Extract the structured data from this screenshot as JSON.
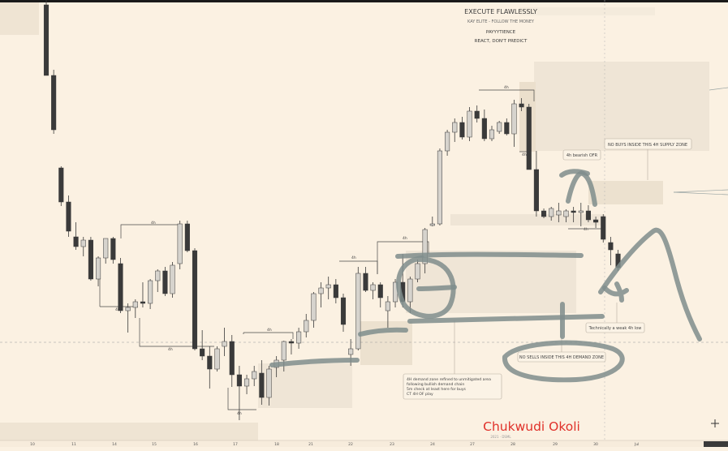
{
  "header": {
    "line1": "EXECUTE FLAWLESSLY",
    "line2": "KAY ELITE - FOLLOW THE MONEY",
    "line3": "PAYYYTIENCE",
    "line4": "REACT, DON'T PREDICT"
  },
  "annotations": {
    "supply_zone": "NO BUYS INSIDE THIS 4H SUPPLY ZONE",
    "bearish_ofr": "4h bearish OFR",
    "weak_low": "Technically a weak 4h low",
    "demand_zone": "NO SELLS INSIDE THIS 4H DEMAND ZONE",
    "demand_note": [
      "4H demand zone refined to unmitigated area",
      "following bullish demand chain",
      "5m check at least here for buys",
      "CT 4H OF play"
    ],
    "level_labels": [
      "4h",
      "4h",
      "4h",
      "4h",
      "4h",
      "4h",
      "4h",
      "4h",
      "4h",
      "4h"
    ]
  },
  "watermark": {
    "name": "Chukwudi Okoli",
    "sub": "2021 · DSML"
  },
  "colors": {
    "background": "#fbf1e2",
    "bear": "#3a3a3a",
    "bull": "#d6d3cd",
    "wick": "#3a3a3a",
    "zone": "#efe4d3",
    "pen": "#7f8d8c",
    "watermark": "#e0312a"
  },
  "chart_data": {
    "type": "candlestick",
    "title": "",
    "xlabel": "",
    "ylabel": "",
    "x_tick_labels": [
      "10",
      "11",
      "14",
      "15",
      "16",
      "17",
      "18",
      "21",
      "22",
      "23",
      "24",
      "27",
      "28",
      "29",
      "30"
    ],
    "x_right_label": "Jul",
    "ylim": [
      0,
      551
    ],
    "grid": false,
    "note": "Price axis unlabeled in screenshot; OHLC values are relative chart units (0 = bottom, higher = up).",
    "candles": [
      {
        "o": 545,
        "h": 551,
        "l": 458,
        "c": 458
      },
      {
        "o": 458,
        "h": 465,
        "l": 386,
        "c": 391
      },
      {
        "o": 344,
        "h": 346,
        "l": 297,
        "c": 302
      },
      {
        "o": 302,
        "h": 310,
        "l": 259,
        "c": 266
      },
      {
        "o": 259,
        "h": 277,
        "l": 243,
        "c": 247
      },
      {
        "o": 247,
        "h": 259,
        "l": 235,
        "c": 255
      },
      {
        "o": 255,
        "h": 259,
        "l": 205,
        "c": 207
      },
      {
        "o": 207,
        "h": 235,
        "l": 198,
        "c": 233
      },
      {
        "o": 233,
        "h": 257,
        "l": 226,
        "c": 257
      },
      {
        "o": 257,
        "h": 259,
        "l": 226,
        "c": 231
      },
      {
        "o": 226,
        "h": 233,
        "l": 165,
        "c": 168
      },
      {
        "o": 168,
        "h": 177,
        "l": 141,
        "c": 172
      },
      {
        "o": 172,
        "h": 182,
        "l": 159,
        "c": 179
      },
      {
        "o": 179,
        "h": 203,
        "l": 172,
        "c": 177
      },
      {
        "o": 177,
        "h": 207,
        "l": 170,
        "c": 205
      },
      {
        "o": 205,
        "h": 219,
        "l": 191,
        "c": 217
      },
      {
        "o": 217,
        "h": 222,
        "l": 186,
        "c": 189
      },
      {
        "o": 189,
        "h": 228,
        "l": 184,
        "c": 224
      },
      {
        "o": 226,
        "h": 279,
        "l": 219,
        "c": 275
      },
      {
        "o": 275,
        "h": 279,
        "l": 240,
        "c": 242
      },
      {
        "o": 242,
        "h": 245,
        "l": 119,
        "c": 121
      },
      {
        "o": 121,
        "h": 144,
        "l": 107,
        "c": 112
      },
      {
        "o": 112,
        "h": 124,
        "l": 72,
        "c": 96
      },
      {
        "o": 96,
        "h": 124,
        "l": 93,
        "c": 121
      },
      {
        "o": 124,
        "h": 147,
        "l": 112,
        "c": 130
      },
      {
        "o": 130,
        "h": 138,
        "l": 74,
        "c": 89
      },
      {
        "o": 89,
        "h": 100,
        "l": 33,
        "c": 75
      },
      {
        "o": 75,
        "h": 89,
        "l": 65,
        "c": 84
      },
      {
        "o": 84,
        "h": 100,
        "l": 75,
        "c": 93
      },
      {
        "o": 91,
        "h": 107,
        "l": 52,
        "c": 61
      },
      {
        "o": 61,
        "h": 100,
        "l": 51,
        "c": 96
      },
      {
        "o": 98,
        "h": 112,
        "l": 86,
        "c": 107
      },
      {
        "o": 107,
        "h": 131,
        "l": 93,
        "c": 130
      },
      {
        "o": 130,
        "h": 133,
        "l": 114,
        "c": 128
      },
      {
        "o": 128,
        "h": 147,
        "l": 121,
        "c": 142
      },
      {
        "o": 142,
        "h": 164,
        "l": 135,
        "c": 156
      },
      {
        "o": 156,
        "h": 191,
        "l": 147,
        "c": 189
      },
      {
        "o": 189,
        "h": 203,
        "l": 172,
        "c": 196
      },
      {
        "o": 196,
        "h": 210,
        "l": 182,
        "c": 200
      },
      {
        "o": 200,
        "h": 207,
        "l": 177,
        "c": 184
      },
      {
        "o": 184,
        "h": 189,
        "l": 142,
        "c": 151
      },
      {
        "o": 114,
        "h": 133,
        "l": 100,
        "c": 121
      },
      {
        "o": 121,
        "h": 222,
        "l": 119,
        "c": 214
      },
      {
        "o": 214,
        "h": 222,
        "l": 191,
        "c": 193
      },
      {
        "o": 193,
        "h": 203,
        "l": 182,
        "c": 200
      },
      {
        "o": 200,
        "h": 203,
        "l": 172,
        "c": 184
      },
      {
        "o": 168,
        "h": 186,
        "l": 147,
        "c": 179
      },
      {
        "o": 179,
        "h": 207,
        "l": 172,
        "c": 203
      },
      {
        "o": 203,
        "h": 238,
        "l": 172,
        "c": 179
      },
      {
        "o": 179,
        "h": 210,
        "l": 165,
        "c": 207
      },
      {
        "o": 207,
        "h": 231,
        "l": 203,
        "c": 226
      },
      {
        "o": 226,
        "h": 270,
        "l": 214,
        "c": 268
      },
      {
        "o": 273,
        "h": 284,
        "l": 272,
        "c": 275
      },
      {
        "o": 275,
        "h": 368,
        "l": 273,
        "c": 365
      },
      {
        "o": 365,
        "h": 391,
        "l": 359,
        "c": 388
      },
      {
        "o": 388,
        "h": 405,
        "l": 376,
        "c": 400
      },
      {
        "o": 400,
        "h": 407,
        "l": 379,
        "c": 382
      },
      {
        "o": 382,
        "h": 419,
        "l": 377,
        "c": 414
      },
      {
        "o": 414,
        "h": 421,
        "l": 400,
        "c": 405
      },
      {
        "o": 405,
        "h": 416,
        "l": 377,
        "c": 380
      },
      {
        "o": 380,
        "h": 396,
        "l": 377,
        "c": 391
      },
      {
        "o": 389,
        "h": 402,
        "l": 386,
        "c": 400
      },
      {
        "o": 400,
        "h": 405,
        "l": 384,
        "c": 386
      },
      {
        "o": 386,
        "h": 428,
        "l": 370,
        "c": 423
      },
      {
        "o": 423,
        "h": 430,
        "l": 414,
        "c": 419
      },
      {
        "o": 419,
        "h": 423,
        "l": 342,
        "c": 342
      },
      {
        "o": 342,
        "h": 365,
        "l": 284,
        "c": 291
      },
      {
        "o": 291,
        "h": 294,
        "l": 282,
        "c": 284
      },
      {
        "o": 284,
        "h": 296,
        "l": 279,
        "c": 294
      },
      {
        "o": 286,
        "h": 301,
        "l": 277,
        "c": 291
      },
      {
        "o": 284,
        "h": 293,
        "l": 277,
        "c": 291
      },
      {
        "o": 291,
        "h": 296,
        "l": 277,
        "c": 289
      },
      {
        "o": 289,
        "h": 301,
        "l": 272,
        "c": 291
      },
      {
        "o": 291,
        "h": 298,
        "l": 277,
        "c": 280
      },
      {
        "o": 280,
        "h": 284,
        "l": 270,
        "c": 277
      },
      {
        "o": 284,
        "h": 287,
        "l": 252,
        "c": 256
      },
      {
        "o": 252,
        "h": 259,
        "l": 224,
        "c": 243
      },
      {
        "o": 238,
        "h": 243,
        "l": 217,
        "c": 221
      }
    ]
  }
}
